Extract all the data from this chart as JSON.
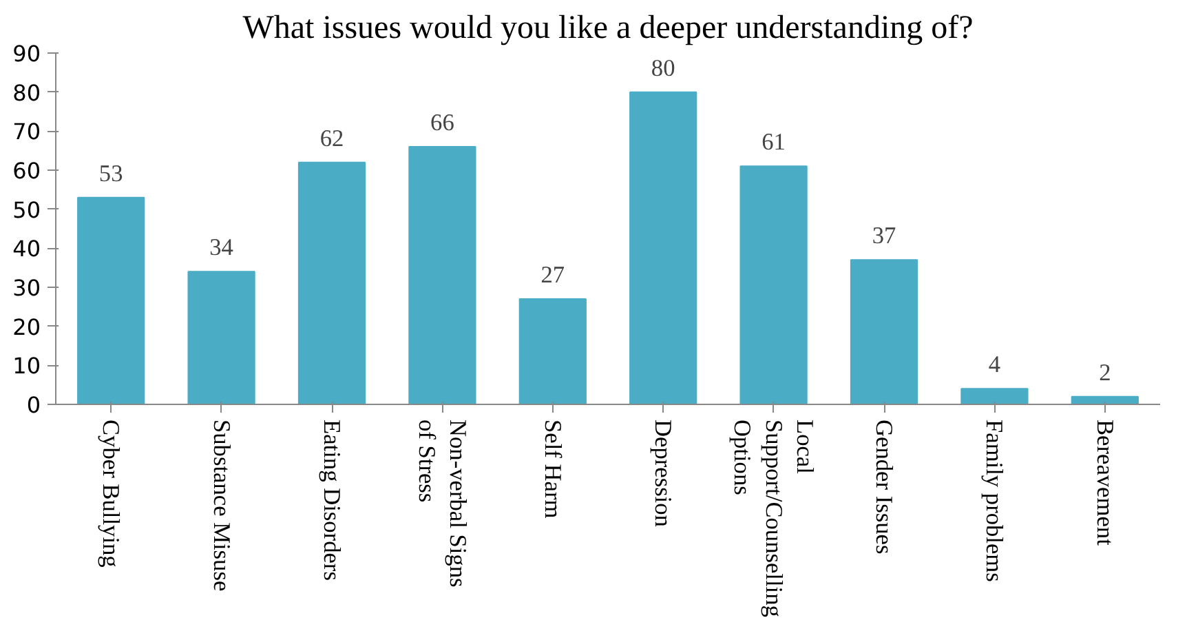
{
  "chart_data": {
    "type": "bar",
    "title": "What issues would you like a deeper understanding of?",
    "categories": [
      "Cyber Bullying",
      "Substance Misuse",
      "Eating Disorders",
      "Non-verbal Signs of Stress",
      "Self Harm",
      "Depression",
      "Local Support/Counselling Options",
      "Gender Issues",
      "Family problems",
      "Bereavement"
    ],
    "values": [
      53,
      34,
      62,
      66,
      27,
      80,
      61,
      37,
      4,
      2
    ],
    "color": "#4bacc6",
    "ylim": [
      0,
      90
    ],
    "yticks": [
      0,
      10,
      20,
      30,
      40,
      50,
      60,
      70,
      80,
      90
    ],
    "grid": false,
    "data_labels": true
  }
}
